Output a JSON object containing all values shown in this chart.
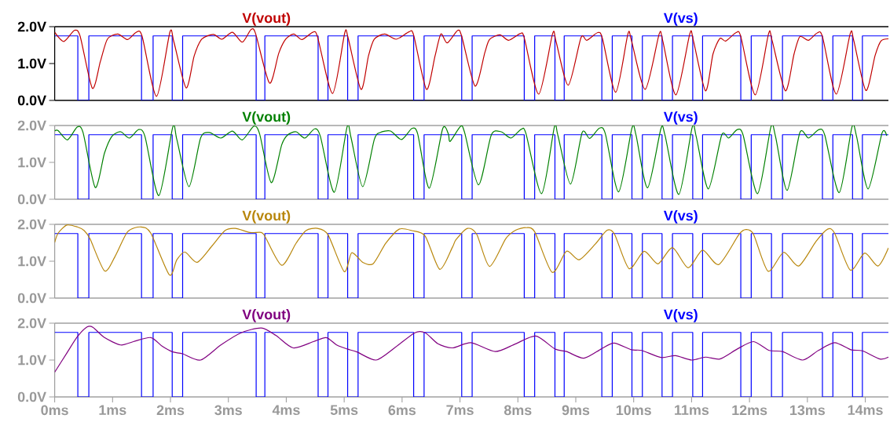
{
  "chart_data": [
    {
      "type": "line",
      "xlim": [
        0,
        14.4
      ],
      "ylim": [
        0,
        2
      ],
      "yticks": [
        {
          "value": 0,
          "label": "0.0V"
        },
        {
          "value": 1,
          "label": "1.0V"
        },
        {
          "value": 2,
          "label": "2.0V"
        }
      ],
      "tick_labels": "y",
      "marker": "none",
      "line_style": "solid",
      "series": [
        {
          "name": "V(vout)",
          "color": "#c00000",
          "x": [
            0,
            0.16,
            0.34,
            0.44,
            0.65,
            0.79,
            0.91,
            1.09,
            1.26,
            1.41,
            1.51,
            1.76,
            1.99,
            2.06,
            2.27,
            2.41,
            2.54,
            2.74,
            2.89,
            3.07,
            3.24,
            3.39,
            3.47,
            3.71,
            3.87,
            3.99,
            4.13,
            4.27,
            4.46,
            4.54,
            4.8,
            5.01,
            5.07,
            5.29,
            5.42,
            5.52,
            5.7,
            5.9,
            6.12,
            6.2,
            6.42,
            6.57,
            6.67,
            6.78,
            6.96,
            7.03,
            7.26,
            7.43,
            7.51,
            7.69,
            7.84,
            8.04,
            8.11,
            8.36,
            8.6,
            8.66,
            8.87,
            9.09,
            9.19,
            9.38,
            9.46,
            9.69,
            9.9,
            9.96,
            10.2,
            10.44,
            10.5,
            10.73,
            10.97,
            11.03,
            11.24,
            11.37,
            11.49,
            11.59,
            11.77,
            11.85,
            12.1,
            12.33,
            12.39,
            12.62,
            12.77,
            12.87,
            13.02,
            13.17,
            13.26,
            13.5,
            13.74,
            13.8,
            14.01,
            14.17,
            14.27,
            14.4
          ],
          "values": [
            1.85,
            1.6,
            1.9,
            1.74,
            0.33,
            1.06,
            1.66,
            1.8,
            1.65,
            1.85,
            1.74,
            0.11,
            1.85,
            1.58,
            0.34,
            1.21,
            1.66,
            1.79,
            1.66,
            1.85,
            1.58,
            1.92,
            1.81,
            0.47,
            1.28,
            1.66,
            1.8,
            1.65,
            1.85,
            1.72,
            0.19,
            1.83,
            1.68,
            0.3,
            1.21,
            1.66,
            1.8,
            1.66,
            1.86,
            1.77,
            0.3,
            1.21,
            1.8,
            1.56,
            1.9,
            1.74,
            0.39,
            1.3,
            1.65,
            1.78,
            1.63,
            1.81,
            1.7,
            0.17,
            1.81,
            1.59,
            0.41,
            1.7,
            1.63,
            1.84,
            1.68,
            0.22,
            1.8,
            1.63,
            0.3,
            1.8,
            1.63,
            0.15,
            1.81,
            1.63,
            0.26,
            1.26,
            1.68,
            1.61,
            1.84,
            1.73,
            0.15,
            1.81,
            1.63,
            0.26,
            1.26,
            1.73,
            1.63,
            1.83,
            1.73,
            0.17,
            1.81,
            1.63,
            0.27,
            1.22,
            1.61,
            1.67
          ]
        },
        {
          "name": "V(vs)",
          "color": "#0000ff",
          "x": [
            0,
            0.4,
            0.4,
            0.59,
            0.59,
            1.5,
            1.5,
            1.7,
            1.7,
            2.03,
            2.03,
            2.21,
            2.21,
            3.48,
            3.48,
            3.63,
            3.63,
            4.55,
            4.55,
            4.72,
            4.72,
            5.06,
            5.06,
            5.24,
            5.24,
            6.2,
            6.2,
            6.38,
            6.38,
            7.03,
            7.03,
            7.21,
            7.21,
            8.11,
            8.11,
            8.29,
            8.29,
            8.64,
            8.64,
            8.8,
            8.8,
            9.45,
            9.45,
            9.63,
            9.63,
            9.97,
            9.97,
            10.15,
            10.15,
            10.49,
            10.49,
            10.67,
            10.67,
            11.02,
            11.02,
            11.19,
            11.19,
            11.85,
            11.85,
            12.03,
            12.03,
            12.38,
            12.38,
            12.57,
            12.57,
            13.26,
            13.26,
            13.44,
            13.44,
            13.78,
            13.78,
            13.95,
            13.95,
            14.4
          ],
          "values": [
            1.75,
            1.75,
            0,
            0,
            1.75,
            1.75,
            0,
            0,
            1.75,
            1.75,
            0,
            0,
            1.75,
            1.75,
            0,
            0,
            1.75,
            1.75,
            0,
            0,
            1.75,
            1.75,
            0,
            0,
            1.75,
            1.75,
            0,
            0,
            1.75,
            1.75,
            0,
            0,
            1.75,
            1.75,
            0,
            0,
            1.75,
            1.75,
            0,
            0,
            1.75,
            1.75,
            0,
            0,
            1.75,
            1.75,
            0,
            0,
            1.75,
            1.75,
            0,
            0,
            1.75,
            1.75,
            0,
            0,
            1.75,
            1.75,
            0,
            0,
            1.75,
            1.75,
            0,
            0,
            1.75,
            1.75,
            0,
            0,
            1.75,
            1.75,
            0,
            0,
            1.75,
            1.75
          ]
        }
      ]
    },
    {
      "type": "line",
      "xlim": [
        0,
        14.4
      ],
      "ylim": [
        0,
        2
      ],
      "yticks": [
        {
          "value": 0,
          "label": "0.0V"
        },
        {
          "value": 1,
          "label": "1.0V"
        },
        {
          "value": 2,
          "label": "2.0V"
        }
      ],
      "tick_labels": "y",
      "marker": "none",
      "line_style": "solid",
      "series": [
        {
          "name": "V(vout)",
          "color": "#008000",
          "x": [
            0,
            0.06,
            0.22,
            0.39,
            0.49,
            0.7,
            0.86,
            0.99,
            1.14,
            1.29,
            1.45,
            1.56,
            1.8,
            2.04,
            2.11,
            2.32,
            2.52,
            2.67,
            2.87,
            3.07,
            3.24,
            3.44,
            3.54,
            3.74,
            3.92,
            4.02,
            4.17,
            4.32,
            4.49,
            4.59,
            4.83,
            5.05,
            5.12,
            5.32,
            5.52,
            5.62,
            5.8,
            5.99,
            6.17,
            6.27,
            6.47,
            6.7,
            6.8,
            6.83,
            7.01,
            7.08,
            7.32,
            7.54,
            7.71,
            7.88,
            8.06,
            8.14,
            8.41,
            8.63,
            8.69,
            8.91,
            9.11,
            9.24,
            9.41,
            9.51,
            9.74,
            9.97,
            10.04,
            10.24,
            10.47,
            10.54,
            10.78,
            11.01,
            11.08,
            11.29,
            11.52,
            11.64,
            11.79,
            11.89,
            12.14,
            12.37,
            12.45,
            12.65,
            12.87,
            13.02,
            13.2,
            13.3,
            13.55,
            13.77,
            13.85,
            14.05,
            14.29,
            14.37
          ],
          "values": [
            1.85,
            1.86,
            1.61,
            1.96,
            1.81,
            0.32,
            1.25,
            1.71,
            1.83,
            1.66,
            1.89,
            1.7,
            0.1,
            1.96,
            1.62,
            0.34,
            1.66,
            1.81,
            1.66,
            1.85,
            1.61,
            1.98,
            1.77,
            0.45,
            1.47,
            1.74,
            1.83,
            1.66,
            1.91,
            1.7,
            0.19,
            1.96,
            1.66,
            0.34,
            1.62,
            1.81,
            1.85,
            1.62,
            1.92,
            1.77,
            0.3,
            1.91,
            1.77,
            1.57,
            1.98,
            1.81,
            0.39,
            1.74,
            1.83,
            1.66,
            1.9,
            1.78,
            0.15,
            1.96,
            1.74,
            0.41,
            1.81,
            1.65,
            1.93,
            1.78,
            0.2,
            1.93,
            1.74,
            0.31,
            1.91,
            1.74,
            0.13,
            1.95,
            1.7,
            0.28,
            1.74,
            1.66,
            1.89,
            1.74,
            0.15,
            1.96,
            1.7,
            0.24,
            1.81,
            1.66,
            1.89,
            1.74,
            0.18,
            1.96,
            1.7,
            0.28,
            1.8,
            1.72
          ]
        },
        {
          "name": "V(vs)",
          "color": "#0000ff",
          "x": [
            0,
            0.4,
            0.4,
            0.59,
            0.59,
            1.5,
            1.5,
            1.7,
            1.7,
            2.03,
            2.03,
            2.21,
            2.21,
            3.48,
            3.48,
            3.63,
            3.63,
            4.55,
            4.55,
            4.72,
            4.72,
            5.06,
            5.06,
            5.24,
            5.24,
            6.2,
            6.2,
            6.38,
            6.38,
            7.03,
            7.03,
            7.21,
            7.21,
            8.11,
            8.11,
            8.29,
            8.29,
            8.64,
            8.64,
            8.8,
            8.8,
            9.45,
            9.45,
            9.63,
            9.63,
            9.97,
            9.97,
            10.15,
            10.15,
            10.49,
            10.49,
            10.67,
            10.67,
            11.02,
            11.02,
            11.19,
            11.19,
            11.85,
            11.85,
            12.03,
            12.03,
            12.38,
            12.38,
            12.57,
            12.57,
            13.26,
            13.26,
            13.44,
            13.44,
            13.78,
            13.78,
            13.95,
            13.95,
            14.4
          ],
          "values": [
            1.75,
            1.75,
            0,
            0,
            1.75,
            1.75,
            0,
            0,
            1.75,
            1.75,
            0,
            0,
            1.75,
            1.75,
            0,
            0,
            1.75,
            1.75,
            0,
            0,
            1.75,
            1.75,
            0,
            0,
            1.75,
            1.75,
            0,
            0,
            1.75,
            1.75,
            0,
            0,
            1.75,
            1.75,
            0,
            0,
            1.75,
            1.75,
            0,
            0,
            1.75,
            1.75,
            0,
            0,
            1.75,
            1.75,
            0,
            0,
            1.75,
            1.75,
            0,
            0,
            1.75,
            1.75,
            0,
            0,
            1.75,
            1.75,
            0,
            0,
            1.75,
            1.75,
            0,
            0,
            1.75,
            1.75,
            0,
            0,
            1.75,
            1.75,
            0,
            0,
            1.75,
            1.75
          ]
        }
      ]
    },
    {
      "type": "line",
      "xlim": [
        0,
        14.4
      ],
      "ylim": [
        0,
        2
      ],
      "yticks": [
        {
          "value": 0,
          "label": "0.0V"
        },
        {
          "value": 1,
          "label": "1.0V"
        },
        {
          "value": 2,
          "label": "2.0V"
        }
      ],
      "tick_labels": "y",
      "marker": "none",
      "line_style": "solid",
      "series": [
        {
          "name": "V(vout)",
          "color": "#b8860b",
          "x": [
            0,
            0.06,
            0.21,
            0.39,
            0.51,
            0.61,
            0.86,
            1.04,
            1.26,
            1.49,
            1.66,
            1.98,
            2.11,
            2.25,
            2.46,
            2.72,
            2.94,
            3.12,
            3.37,
            3.57,
            3.64,
            3.92,
            4.17,
            4.34,
            4.54,
            4.72,
            5.0,
            5.13,
            5.32,
            5.5,
            5.72,
            5.95,
            6.17,
            6.4,
            6.65,
            6.87,
            6.93,
            7.13,
            7.29,
            7.51,
            7.79,
            7.96,
            8.14,
            8.29,
            8.59,
            8.84,
            9.06,
            9.34,
            9.54,
            9.67,
            9.92,
            10.18,
            10.42,
            10.67,
            10.94,
            11.19,
            11.47,
            11.82,
            11.94,
            12.07,
            12.32,
            12.59,
            12.85,
            13.15,
            13.35,
            13.47,
            13.74,
            13.99,
            14.22,
            14.4
          ],
          "values": [
            1.51,
            1.76,
            1.98,
            1.93,
            1.83,
            1.61,
            0.74,
            1.12,
            1.8,
            1.93,
            1.76,
            0.63,
            1.04,
            1.25,
            0.97,
            1.42,
            1.83,
            1.89,
            1.78,
            1.78,
            1.65,
            0.89,
            1.49,
            1.83,
            1.89,
            1.72,
            0.72,
            1.23,
            0.97,
            0.93,
            1.49,
            1.87,
            1.83,
            1.68,
            0.78,
            1.38,
            1.58,
            1.89,
            1.73,
            0.86,
            1.61,
            1.84,
            1.91,
            1.8,
            0.7,
            1.27,
            1.04,
            1.47,
            1.84,
            1.73,
            0.8,
            1.27,
            0.93,
            1.37,
            0.82,
            1.3,
            0.91,
            1.73,
            1.86,
            1.73,
            0.73,
            1.24,
            0.87,
            1.54,
            1.87,
            1.76,
            0.76,
            1.22,
            0.87,
            1.36
          ]
        },
        {
          "name": "V(vs)",
          "color": "#0000ff",
          "x": [
            0,
            0.4,
            0.4,
            0.59,
            0.59,
            1.5,
            1.5,
            1.7,
            1.7,
            2.03,
            2.03,
            2.21,
            2.21,
            3.48,
            3.48,
            3.63,
            3.63,
            4.55,
            4.55,
            4.72,
            4.72,
            5.06,
            5.06,
            5.24,
            5.24,
            6.2,
            6.2,
            6.38,
            6.38,
            7.03,
            7.03,
            7.21,
            7.21,
            8.11,
            8.11,
            8.29,
            8.29,
            8.64,
            8.64,
            8.8,
            8.8,
            9.45,
            9.45,
            9.63,
            9.63,
            9.97,
            9.97,
            10.15,
            10.15,
            10.49,
            10.49,
            10.67,
            10.67,
            11.02,
            11.02,
            11.19,
            11.19,
            11.85,
            11.85,
            12.03,
            12.03,
            12.38,
            12.38,
            12.57,
            12.57,
            13.26,
            13.26,
            13.44,
            13.44,
            13.78,
            13.78,
            13.95,
            13.95,
            14.4
          ],
          "values": [
            1.75,
            1.75,
            0,
            0,
            1.75,
            1.75,
            0,
            0,
            1.75,
            1.75,
            0,
            0,
            1.75,
            1.75,
            0,
            0,
            1.75,
            1.75,
            0,
            0,
            1.75,
            1.75,
            0,
            0,
            1.75,
            1.75,
            0,
            0,
            1.75,
            1.75,
            0,
            0,
            1.75,
            1.75,
            0,
            0,
            1.75,
            1.75,
            0,
            0,
            1.75,
            1.75,
            0,
            0,
            1.75,
            1.75,
            0,
            0,
            1.75,
            1.75,
            0,
            0,
            1.75,
            1.75,
            0,
            0,
            1.75,
            1.75,
            0,
            0,
            1.75,
            1.75,
            0,
            0,
            1.75,
            1.75,
            0,
            0,
            1.75,
            1.75,
            0,
            0,
            1.75,
            1.75
          ]
        }
      ]
    },
    {
      "type": "line",
      "xlim": [
        0,
        14.4
      ],
      "ylim": [
        0,
        2
      ],
      "yticks": [
        {
          "value": 0,
          "label": "0.0V"
        },
        {
          "value": 1,
          "label": "1.0V"
        },
        {
          "value": 2,
          "label": "2.0V"
        }
      ],
      "xticks": [
        {
          "value": 0,
          "label": "0ms"
        },
        {
          "value": 1,
          "label": "1ms"
        },
        {
          "value": 2,
          "label": "2ms"
        },
        {
          "value": 3,
          "label": "3ms"
        },
        {
          "value": 4,
          "label": "4ms"
        },
        {
          "value": 5,
          "label": "5ms"
        },
        {
          "value": 6,
          "label": "6ms"
        },
        {
          "value": 7,
          "label": "7ms"
        },
        {
          "value": 8,
          "label": "8ms"
        },
        {
          "value": 9,
          "label": "9ms"
        },
        {
          "value": 10,
          "label": "10ms"
        },
        {
          "value": 11,
          "label": "11ms"
        },
        {
          "value": 12,
          "label": "12ms"
        },
        {
          "value": 13,
          "label": "13ms"
        },
        {
          "value": 14,
          "label": "14ms"
        }
      ],
      "marker": "none",
      "line_style": "solid",
      "series": [
        {
          "name": "V(vout)",
          "color": "#800080",
          "x": [
            0,
            0.21,
            0.39,
            0.56,
            0.66,
            0.86,
            1.14,
            1.36,
            1.66,
            1.86,
            2.04,
            2.21,
            2.52,
            2.87,
            3.22,
            3.57,
            3.82,
            4.12,
            4.47,
            4.69,
            4.87,
            5.05,
            5.22,
            5.55,
            5.87,
            6.22,
            6.4,
            6.62,
            6.87,
            7.19,
            7.61,
            7.96,
            8.31,
            8.64,
            8.84,
            9.14,
            9.44,
            9.66,
            9.96,
            10.14,
            10.47,
            10.72,
            11.0,
            11.24,
            11.49,
            11.79,
            12.07,
            12.34,
            12.57,
            12.92,
            13.19,
            13.47,
            13.75,
            13.95,
            14.25,
            14.4
          ],
          "values": [
            0.67,
            1.19,
            1.63,
            1.9,
            1.89,
            1.61,
            1.41,
            1.5,
            1.61,
            1.37,
            1.22,
            1.17,
            1.0,
            1.41,
            1.74,
            1.87,
            1.67,
            1.33,
            1.5,
            1.61,
            1.41,
            1.3,
            1.22,
            1.0,
            1.33,
            1.74,
            1.74,
            1.44,
            1.33,
            1.47,
            1.23,
            1.44,
            1.65,
            1.3,
            1.23,
            1.05,
            1.3,
            1.46,
            1.28,
            1.26,
            1.07,
            1.12,
            1.0,
            1.08,
            1.03,
            1.3,
            1.5,
            1.26,
            1.23,
            1.0,
            1.26,
            1.47,
            1.28,
            1.25,
            1.03,
            1.08
          ]
        },
        {
          "name": "V(vs)",
          "color": "#0000ff",
          "x": [
            0,
            0.4,
            0.4,
            0.59,
            0.59,
            1.5,
            1.5,
            1.7,
            1.7,
            2.03,
            2.03,
            2.21,
            2.21,
            3.48,
            3.48,
            3.63,
            3.63,
            4.55,
            4.55,
            4.72,
            4.72,
            5.06,
            5.06,
            5.24,
            5.24,
            6.2,
            6.2,
            6.38,
            6.38,
            7.03,
            7.03,
            7.21,
            7.21,
            8.11,
            8.11,
            8.29,
            8.29,
            8.64,
            8.64,
            8.8,
            8.8,
            9.45,
            9.45,
            9.63,
            9.63,
            9.97,
            9.97,
            10.15,
            10.15,
            10.49,
            10.49,
            10.67,
            10.67,
            11.02,
            11.02,
            11.19,
            11.19,
            11.85,
            11.85,
            12.03,
            12.03,
            12.38,
            12.38,
            12.57,
            12.57,
            13.26,
            13.26,
            13.44,
            13.44,
            13.78,
            13.78,
            13.95,
            13.95,
            14.4
          ],
          "values": [
            1.75,
            1.75,
            0,
            0,
            1.75,
            1.75,
            0,
            0,
            1.75,
            1.75,
            0,
            0,
            1.75,
            1.75,
            0,
            0,
            1.75,
            1.75,
            0,
            0,
            1.75,
            1.75,
            0,
            0,
            1.75,
            1.75,
            0,
            0,
            1.75,
            1.75,
            0,
            0,
            1.75,
            1.75,
            0,
            0,
            1.75,
            1.75,
            0,
            0,
            1.75,
            1.75,
            0,
            0,
            1.75,
            1.75,
            0,
            0,
            1.75,
            1.75,
            0,
            0,
            1.75,
            1.75,
            0,
            0,
            1.75,
            1.75,
            0,
            0,
            1.75,
            1.75,
            0,
            0,
            1.75,
            1.75,
            0,
            0,
            1.75,
            1.75,
            0,
            0,
            1.75,
            1.75
          ]
        }
      ]
    }
  ]
}
